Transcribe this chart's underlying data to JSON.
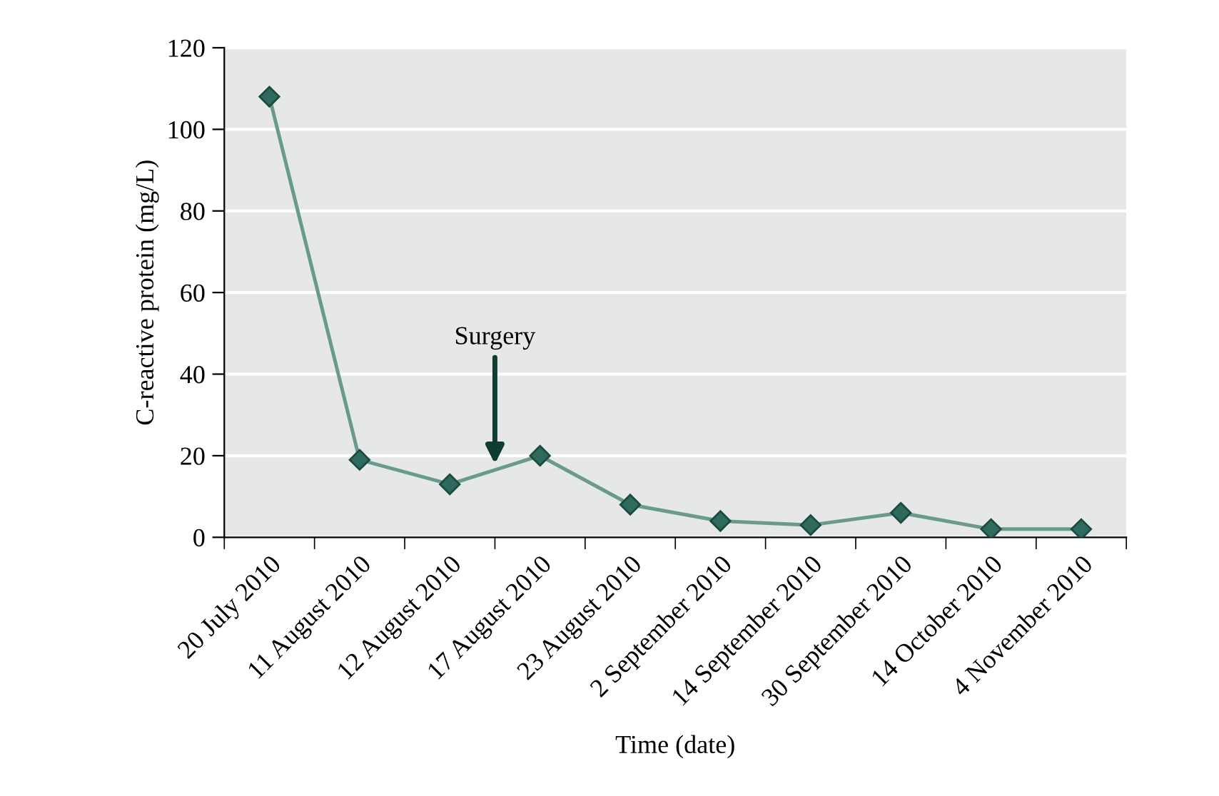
{
  "chart_data": {
    "type": "line",
    "xlabel": "Time (date)",
    "ylabel": "C-reactive protein (mg/L)",
    "categories": [
      "20 July 2010",
      "11 August 2010",
      "12 August 2010",
      "17 August 2010",
      "23 August 2010",
      "2 September 2010",
      "14 September 2010",
      "30 September 2010",
      "14 October 2010",
      "4 November 2010"
    ],
    "series": [
      {
        "color": "#6a9a8e",
        "values": [
          108,
          19,
          13,
          20,
          8,
          4,
          3,
          6,
          2,
          2
        ]
      }
    ],
    "ylim": [
      0,
      120
    ],
    "yticks": [
      0,
      20,
      40,
      60,
      80,
      100,
      120
    ],
    "grid": "y",
    "marker": "diamond",
    "line_style": "solid",
    "annotations": [
      "Surgery"
    ]
  }
}
